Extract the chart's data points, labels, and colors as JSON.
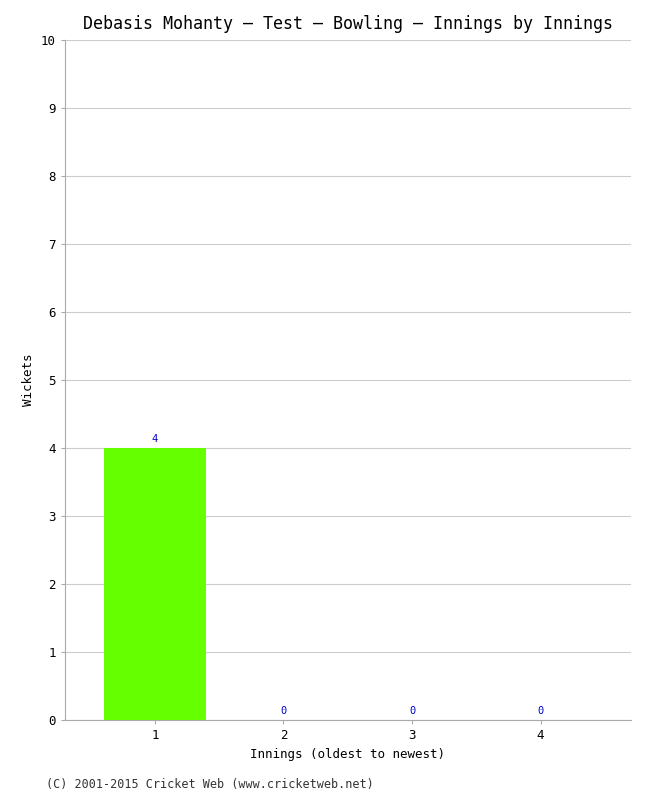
{
  "title": "Debasis Mohanty – Test – Bowling – Innings by Innings",
  "xlabel": "Innings (oldest to newest)",
  "ylabel": "Wickets",
  "categories": [
    1,
    2,
    3,
    4
  ],
  "values": [
    4,
    0,
    0,
    0
  ],
  "bar_color": "#66ff00",
  "ylim": [
    0,
    10
  ],
  "yticks": [
    0,
    1,
    2,
    3,
    4,
    5,
    6,
    7,
    8,
    9,
    10
  ],
  "xticks": [
    1,
    2,
    3,
    4
  ],
  "label_color": "#0000cc",
  "background_color": "#ffffff",
  "grid_color": "#cccccc",
  "spine_color": "#aaaaaa",
  "footer": "(C) 2001-2015 Cricket Web (www.cricketweb.net)",
  "title_fontsize": 12,
  "axis_label_fontsize": 9,
  "tick_fontsize": 9,
  "annotation_fontsize": 7.5,
  "footer_fontsize": 8.5
}
